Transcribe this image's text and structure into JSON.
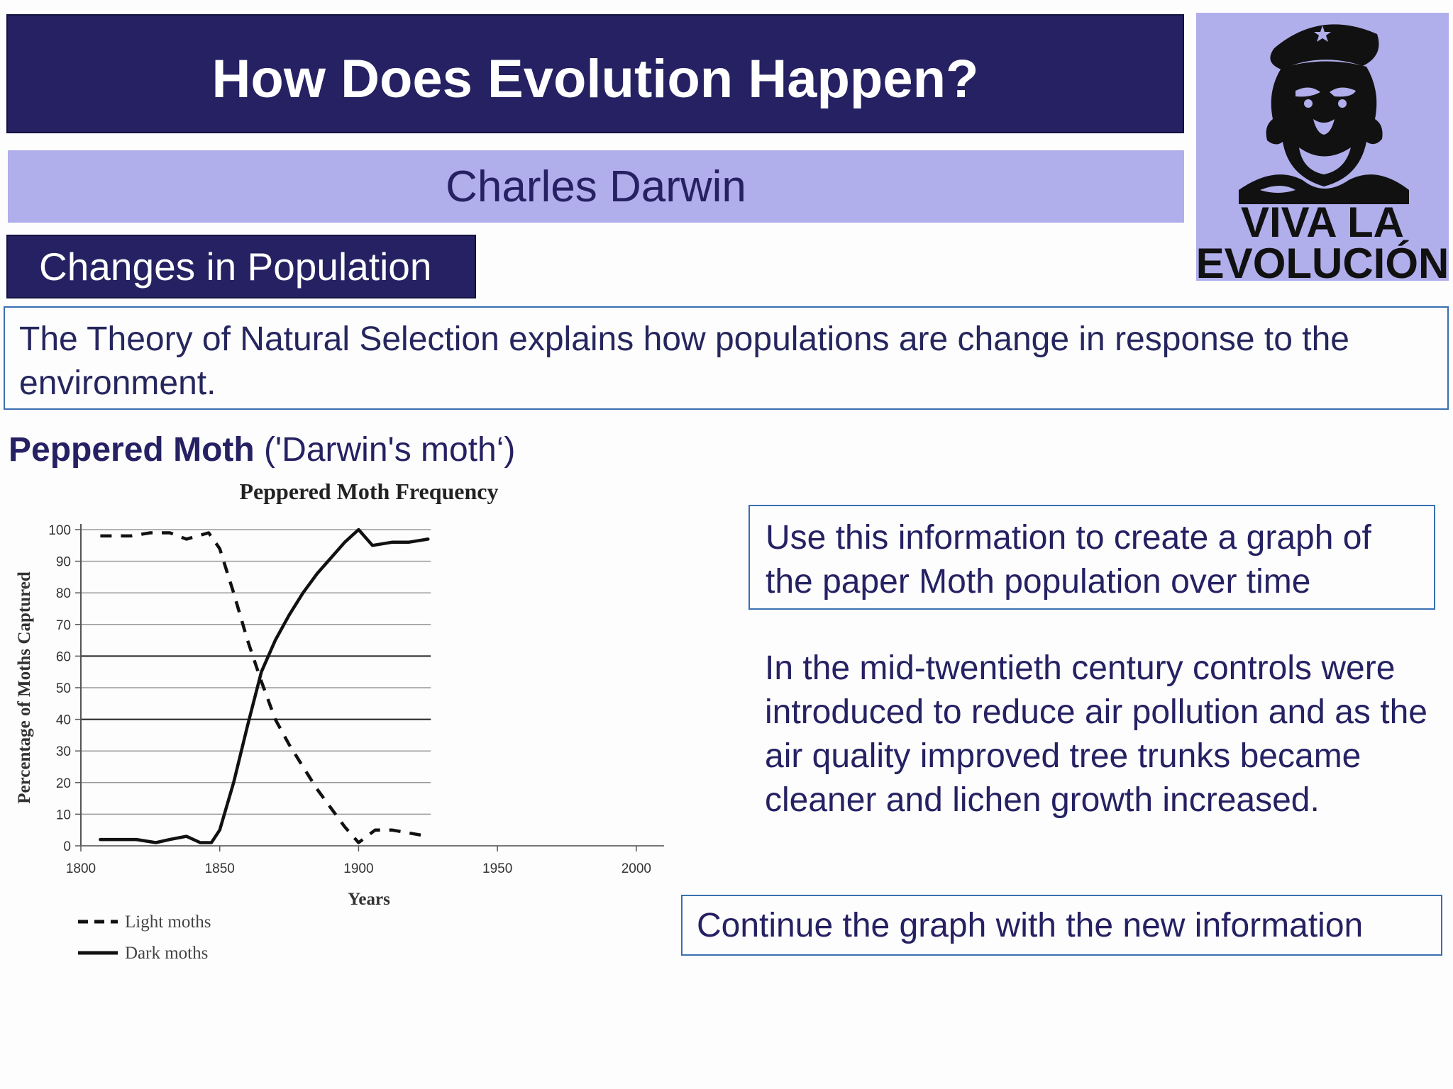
{
  "header": {
    "title": "How Does Evolution Happen?",
    "subtitle": "Charles Darwin",
    "section": "Changes in Population"
  },
  "logo": {
    "icon": "chimpanzee-revolutionary-icon",
    "line1": "VIVA LA",
    "line2": "EVOLUCIÓN"
  },
  "intro": {
    "text": "The Theory of Natural Selection explains how populations are change in response to the environment."
  },
  "moth_heading": {
    "bold": "Peppered Moth",
    "rest": " ('Darwin's moth‘)"
  },
  "task": {
    "text": "Use this information to create a graph of the paper Moth population over time"
  },
  "info": {
    "text": "In the mid-twentieth century controls were introduced to reduce air pollution and as the air quality improved tree trunks became cleaner and lichen growth increased."
  },
  "continue": {
    "text": "Continue the graph with the new information"
  },
  "colors": {
    "navy": "#252162",
    "lavender": "#b0aeeb",
    "box_border": "#3a6fb0"
  },
  "chart_data": {
    "type": "line",
    "title": "Peppered Moth Frequency",
    "xlabel": "Years",
    "ylabel": "Percentage of Moths Captured",
    "xlim": [
      1800,
      2010
    ],
    "ylim": [
      0,
      100
    ],
    "x_ticks": [
      1800,
      1850,
      1900,
      1950,
      2000
    ],
    "y_ticks": [
      0,
      10,
      20,
      30,
      40,
      50,
      60,
      70,
      80,
      90,
      100
    ],
    "grid": true,
    "legend_position": "bottom-left",
    "series": [
      {
        "name": "Light moths",
        "style": "dashed",
        "x": [
          1807,
          1818,
          1825,
          1832,
          1838,
          1846,
          1850,
          1855,
          1860,
          1865,
          1870,
          1875,
          1880,
          1885,
          1890,
          1895,
          1900,
          1906,
          1912,
          1925
        ],
        "y": [
          98,
          98,
          99,
          99,
          97,
          99,
          94,
          80,
          65,
          52,
          40,
          32,
          25,
          18,
          12,
          6,
          1,
          5,
          5,
          3
        ]
      },
      {
        "name": "Dark moths",
        "style": "solid",
        "x": [
          1807,
          1815,
          1820,
          1827,
          1832,
          1838,
          1843,
          1847,
          1850,
          1855,
          1860,
          1865,
          1870,
          1875,
          1880,
          1885,
          1890,
          1895,
          1900,
          1905,
          1912,
          1918,
          1925
        ],
        "y": [
          2,
          2,
          2,
          1,
          2,
          3,
          1,
          1,
          5,
          20,
          38,
          55,
          65,
          73,
          80,
          86,
          91,
          96,
          100,
          95,
          96,
          96,
          97
        ]
      }
    ]
  }
}
